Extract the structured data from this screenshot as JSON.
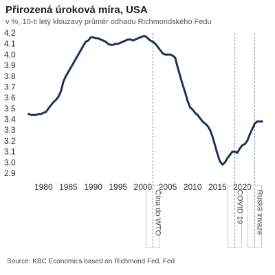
{
  "chart_data": {
    "type": "line",
    "title": "Přirozená úroková míra, USA",
    "subtitle": "v %, 10-ti letý klouzavý průměr odhadu Richmondského Fedu",
    "source": "Source: KBC Economics based on Richmond Fed, Fed",
    "xlabel": "",
    "ylabel": "",
    "xlim": [
      1976.5,
      2024.5
    ],
    "ylim": [
      2.9,
      4.2
    ],
    "yticks": [
      "4.2",
      "4.1",
      "4.0",
      "3.9",
      "3.8",
      "3.7",
      "3.6",
      "3.5",
      "3.4",
      "3.3",
      "3.2",
      "3.1",
      "3.0",
      "2.9"
    ],
    "xticks": [
      "1980",
      "1985",
      "1990",
      "1995",
      "2000",
      "2005",
      "2010",
      "2015",
      "2020"
    ],
    "grid": false,
    "line_color": "#1b3358",
    "series": [
      {
        "x": [
          1977.0,
          1977.5,
          1978.0,
          1978.5,
          1979.0,
          1979.5,
          1980.0,
          1980.5,
          1981.0,
          1981.5,
          1982.0,
          1982.5,
          1983.0,
          1983.5,
          1984.0,
          1984.5,
          1985.0,
          1985.5,
          1986.0,
          1986.5,
          1987.0,
          1987.5,
          1988.0,
          1988.5,
          1989.0,
          1989.5,
          1990.0,
          1990.5,
          1991.0,
          1991.5,
          1992.0,
          1992.5,
          1993.0,
          1993.5,
          1994.0,
          1994.5,
          1995.0,
          1995.5,
          1996.0,
          1996.5,
          1997.0,
          1997.5,
          1998.0,
          1998.5,
          1999.0,
          1999.5,
          2000.0,
          2000.5,
          2001.0,
          2001.5,
          2002.0,
          2002.5,
          2003.0,
          2003.5,
          2004.0,
          2004.5,
          2005.0,
          2005.5,
          2006.0,
          2006.5,
          2007.0,
          2007.5,
          2008.0,
          2008.5,
          2009.0,
          2009.5,
          2010.0,
          2010.5,
          2011.0,
          2011.5,
          2012.0,
          2012.5,
          2013.0,
          2013.5,
          2014.0,
          2014.5,
          2015.0,
          2015.5,
          2016.0,
          2016.5,
          2017.0,
          2017.5,
          2018.0,
          2018.5,
          2019.0,
          2019.5,
          2020.0,
          2020.5,
          2021.0,
          2021.5,
          2022.0,
          2022.5,
          2023.0,
          2023.5,
          2024.0
        ],
        "y": [
          3.45,
          3.44,
          3.44,
          3.44,
          3.45,
          3.45,
          3.46,
          3.47,
          3.5,
          3.53,
          3.56,
          3.58,
          3.61,
          3.66,
          3.75,
          3.8,
          3.84,
          3.88,
          3.92,
          3.96,
          4.0,
          4.04,
          4.08,
          4.12,
          4.13,
          4.16,
          4.16,
          4.15,
          4.15,
          4.14,
          4.13,
          4.12,
          4.1,
          4.09,
          4.09,
          4.1,
          4.1,
          4.11,
          4.12,
          4.13,
          4.14,
          4.14,
          4.13,
          4.14,
          4.15,
          4.16,
          4.17,
          4.17,
          4.15,
          4.13,
          4.12,
          4.1,
          4.07,
          4.04,
          4.01,
          4.0,
          4.0,
          4.0,
          3.99,
          3.97,
          3.88,
          3.8,
          3.72,
          3.65,
          3.57,
          3.51,
          3.49,
          3.46,
          3.44,
          3.41,
          3.38,
          3.36,
          3.34,
          3.3,
          3.24,
          3.16,
          3.08,
          3.01,
          2.98,
          3.0,
          3.04,
          3.07,
          3.1,
          3.1,
          3.09,
          3.13,
          3.16,
          3.17,
          3.2,
          3.26,
          3.31,
          3.36,
          3.38,
          3.38,
          3.38
        ]
      }
    ],
    "annotations": [
      {
        "x": 2002.0,
        "label": "Čína do WTO"
      },
      {
        "x": 2018.5,
        "label": "COVID 19"
      },
      {
        "x": 2022.5,
        "label": "Ruská invaze"
      }
    ]
  }
}
